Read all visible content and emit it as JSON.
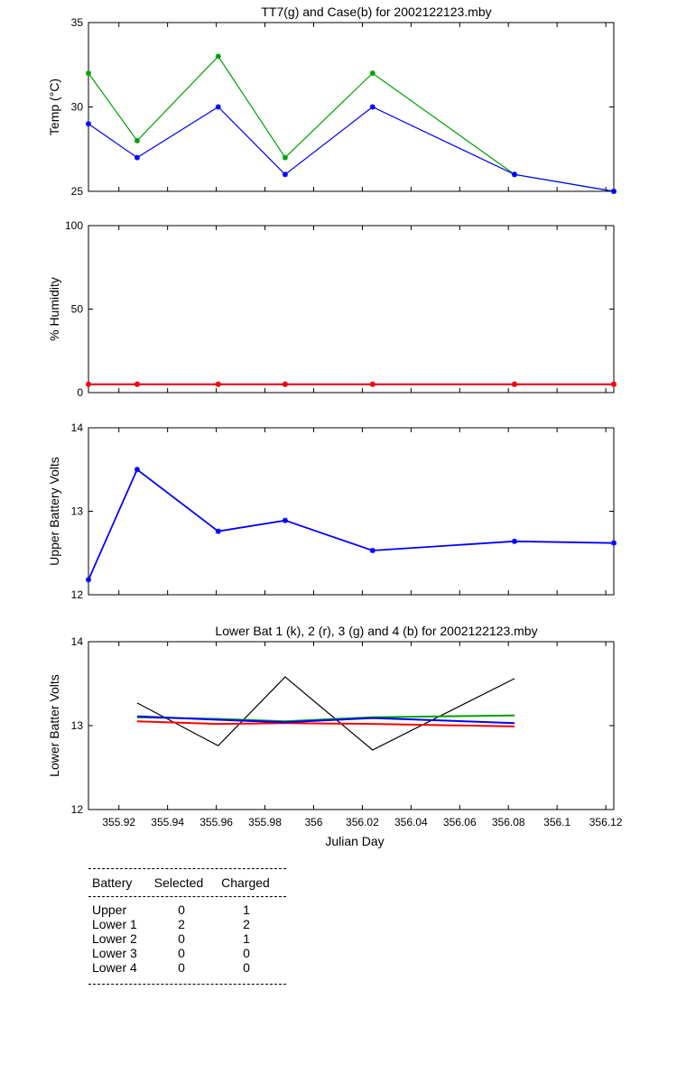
{
  "colors": {
    "green": "#00a000",
    "blue": "#0000ff",
    "red": "#ff0000",
    "black": "#000000"
  },
  "chart_data": [
    {
      "type": "line",
      "title": "TT7(g) and Case(b) for 2002122123.mby",
      "ylabel": "Temp  (°C)",
      "ylim": [
        25,
        35
      ],
      "yticks": [
        25,
        30,
        35
      ],
      "marker": "*",
      "series": [
        {
          "color": "green",
          "x": [
            355.9075,
            355.9275,
            355.9608,
            355.9883,
            356.0242,
            356.0825,
            356.1233
          ],
          "values": [
            32,
            28,
            33,
            27,
            32,
            26,
            25
          ]
        },
        {
          "color": "blue",
          "x": [
            355.9075,
            355.9275,
            355.9608,
            355.9883,
            356.0242,
            356.0825,
            356.1233
          ],
          "values": [
            29,
            27,
            30,
            26,
            30,
            26,
            25
          ]
        }
      ]
    },
    {
      "type": "line",
      "ylabel": "% Humidity",
      "ylim": [
        0,
        100
      ],
      "yticks": [
        0,
        50,
        100
      ],
      "marker": "*",
      "series": [
        {
          "color": "blue",
          "x": [
            355.9075,
            355.9275,
            355.9608,
            355.9883,
            356.0242,
            356.0825,
            356.1233
          ],
          "values": [
            5,
            5,
            5,
            5,
            5,
            5,
            5
          ]
        },
        {
          "color": "red",
          "x": [
            355.9075,
            355.9275,
            355.9608,
            355.9883,
            356.0242,
            356.0825,
            356.1233
          ],
          "values": [
            5,
            5,
            5,
            5,
            5,
            5,
            5
          ]
        }
      ]
    },
    {
      "type": "line",
      "ylabel": "Upper Battery Volts",
      "ylim": [
        12,
        14
      ],
      "yticks": [
        12,
        13,
        14
      ],
      "marker": "*",
      "series": [
        {
          "color": "blue",
          "x": [
            355.9075,
            355.9275,
            355.9608,
            355.9883,
            356.0242,
            356.0825,
            356.1233
          ],
          "values": [
            12.18,
            13.5,
            12.76,
            12.89,
            12.53,
            12.64,
            12.62
          ]
        }
      ]
    },
    {
      "type": "line",
      "title": "Lower Bat 1 (k), 2 (r), 3 (g) and 4 (b) for 2002122123.mby",
      "ylabel": "Lower Batter Volts",
      "xlabel": "Julian Day",
      "ylim": [
        12,
        14
      ],
      "yticks": [
        12,
        13,
        14
      ],
      "xticks": [
        355.92,
        355.94,
        355.96,
        355.98,
        356,
        356.02,
        356.04,
        356.06,
        356.08,
        356.1,
        356.12
      ],
      "xtick_labels": [
        "355.92",
        "355.94",
        "355.96",
        "355.98",
        "356",
        "356.02",
        "356.04",
        "356.06",
        "356.08",
        "356.1",
        "356.12"
      ],
      "series": [
        {
          "color": "black",
          "x": [
            355.9275,
            355.9608,
            355.9883,
            356.0242,
            356.0825
          ],
          "values": [
            13.27,
            12.76,
            13.58,
            12.71,
            13.56
          ]
        },
        {
          "color": "red",
          "x": [
            355.9275,
            355.9608,
            355.9883,
            356.0242,
            356.0825
          ],
          "values": [
            13.05,
            13.02,
            13.03,
            13.02,
            12.99
          ]
        },
        {
          "color": "green",
          "x": [
            355.9275,
            355.9608,
            355.9883,
            356.0242,
            356.0825
          ],
          "values": [
            13.1,
            13.08,
            13.05,
            13.1,
            13.12
          ]
        },
        {
          "color": "blue",
          "x": [
            355.9275,
            355.9608,
            355.9883,
            356.0242,
            356.0825
          ],
          "values": [
            13.11,
            13.07,
            13.04,
            13.09,
            13.03
          ]
        }
      ]
    }
  ],
  "xlim": [
    355.9075,
    356.1233
  ],
  "battery_table": {
    "headers": [
      "Battery",
      "Selected",
      "Charged"
    ],
    "rows": [
      [
        "Upper",
        "0",
        "1"
      ],
      [
        "Lower 1",
        "2",
        "2"
      ],
      [
        "Lower 2",
        "0",
        "1"
      ],
      [
        "Lower 3",
        "0",
        "0"
      ],
      [
        "Lower 4",
        "0",
        "0"
      ]
    ]
  }
}
